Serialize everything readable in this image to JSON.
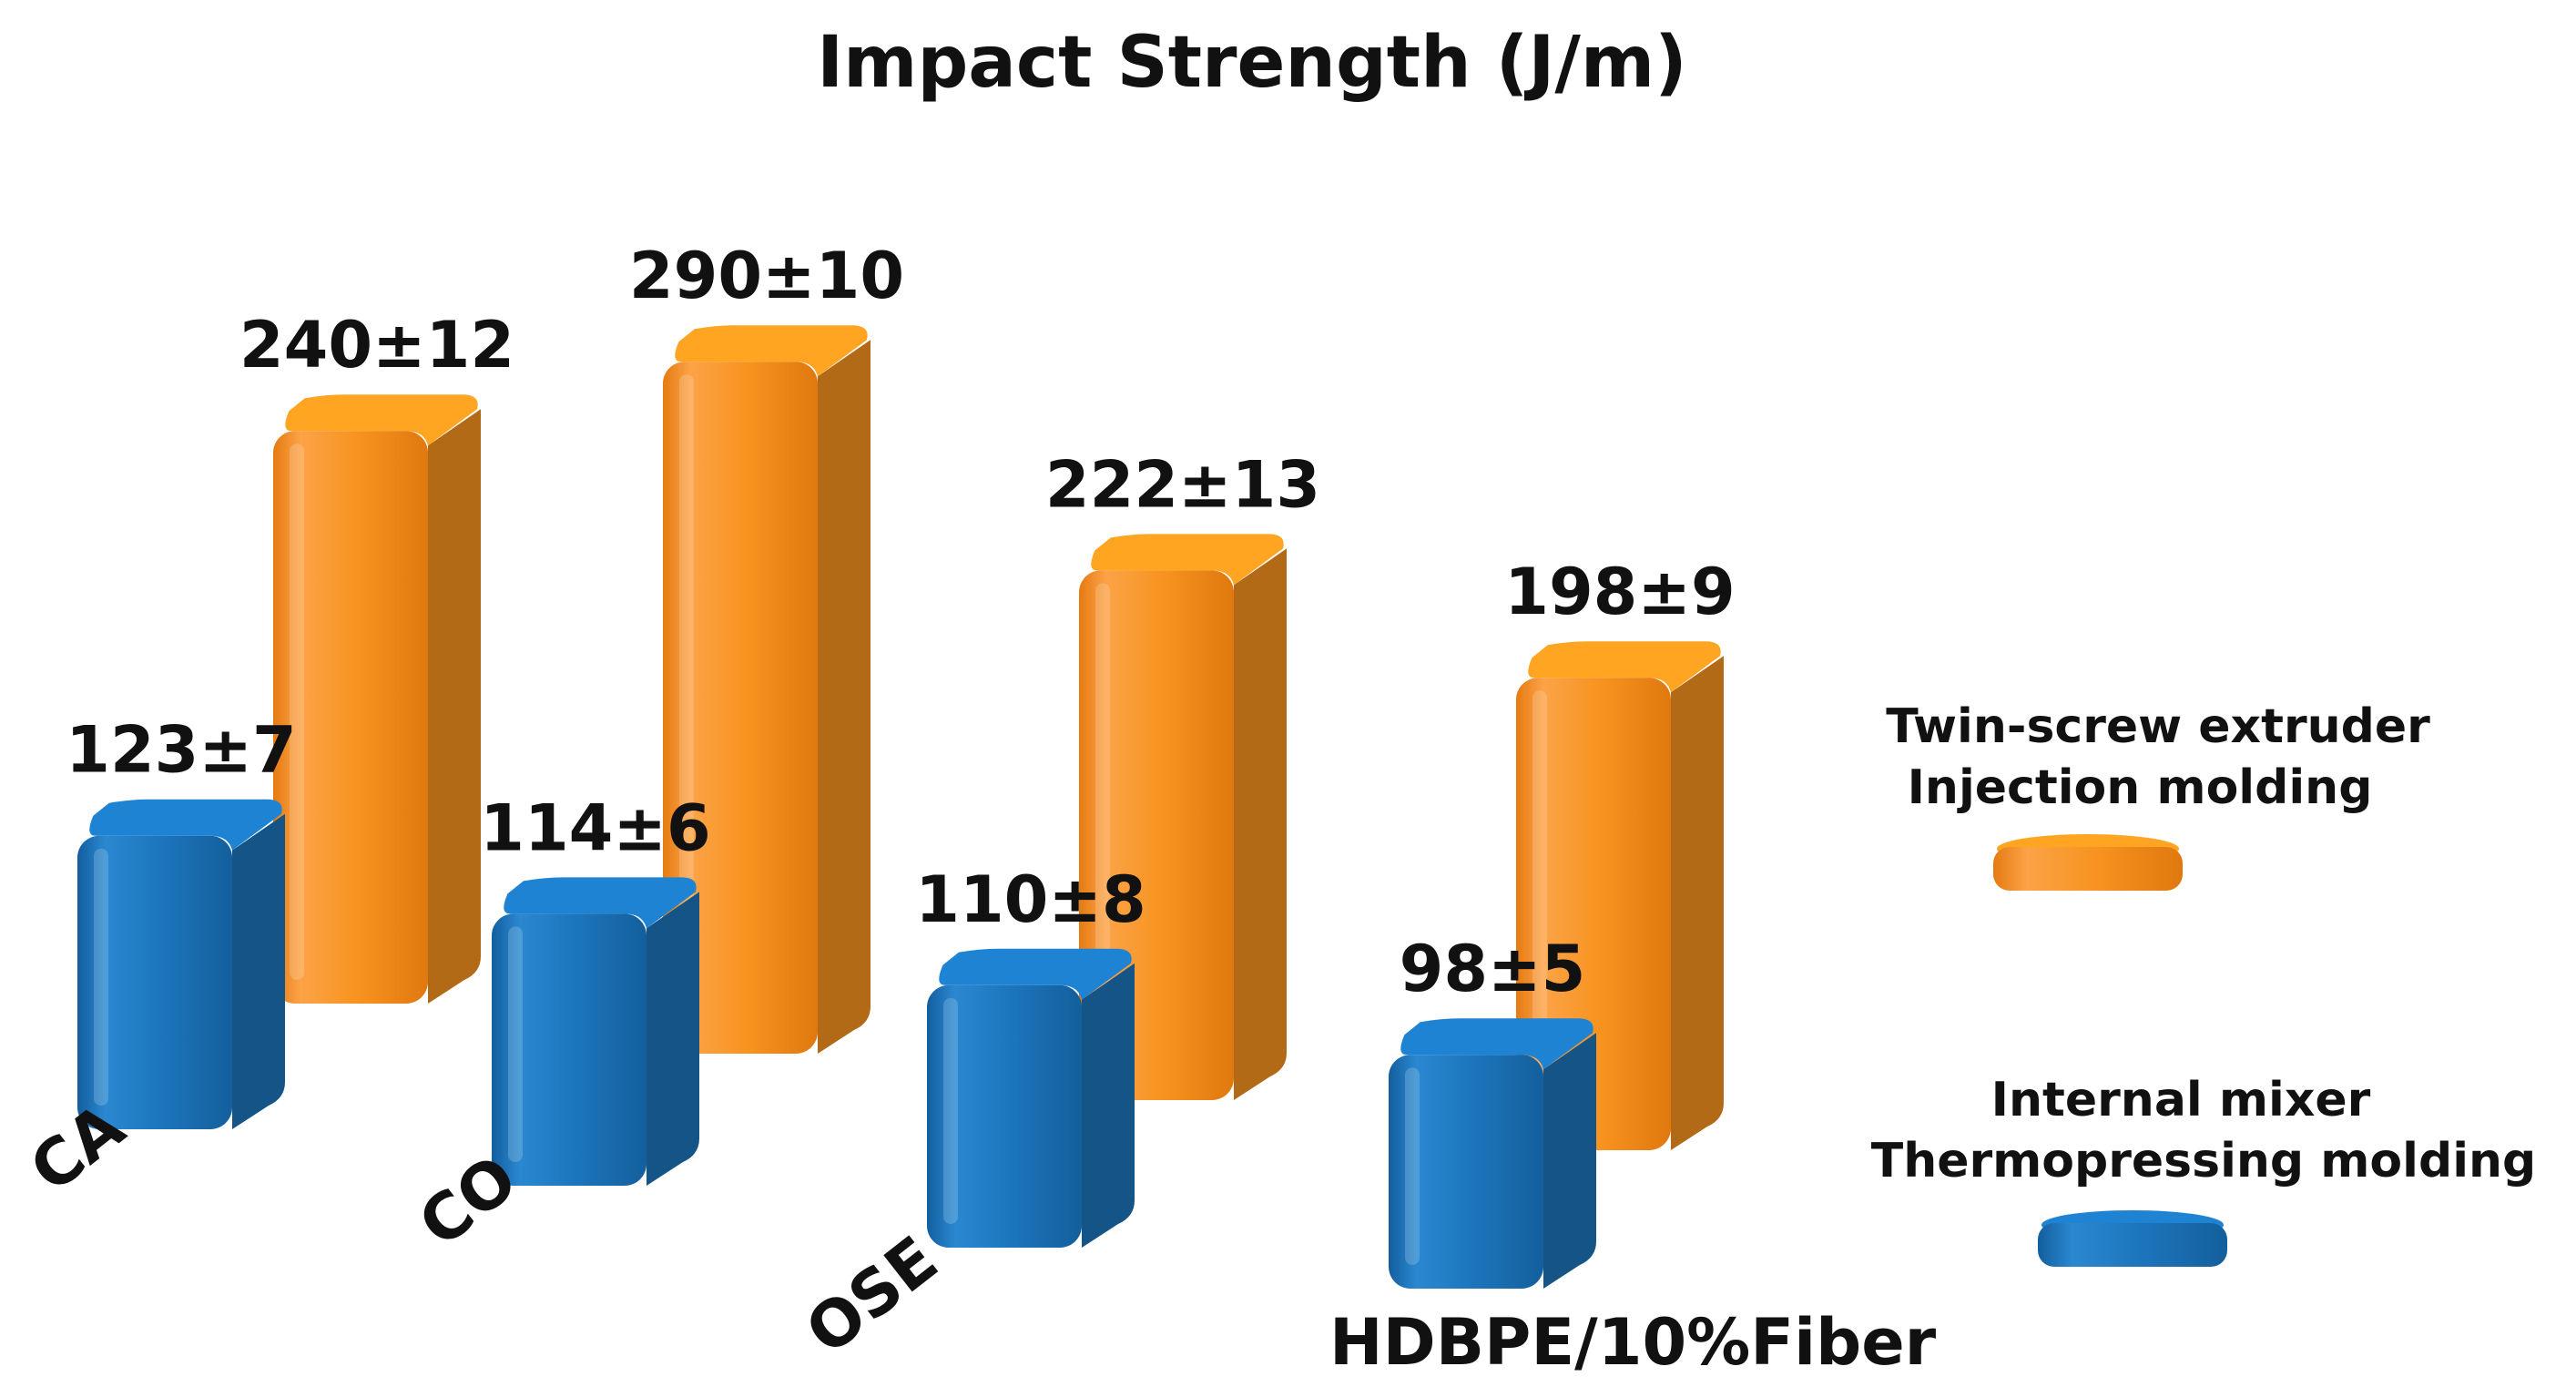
{
  "chart_data": {
    "type": "bar",
    "title": "Impact Strength (J/m)",
    "categories": [
      "CA",
      "CO",
      "OSE",
      "HDBPE/10%Fiber"
    ],
    "series": [
      {
        "name": "Twin-screw extruder Injection molding",
        "legend_lines": [
          "Twin-screw extruder",
          "Injection molding"
        ],
        "color": "#F7931E",
        "values": [
          240,
          290,
          222,
          198
        ],
        "errors": [
          12,
          10,
          13,
          9
        ],
        "labels": [
          "240±12",
          "290±10",
          "222±13",
          "198±9"
        ]
      },
      {
        "name": "Internal mixer Thermopressing molding",
        "legend_lines": [
          "Internal mixer",
          "Thermopressing molding"
        ],
        "color": "#1C75BC",
        "values": [
          123,
          114,
          110,
          98
        ],
        "errors": [
          7,
          6,
          8,
          5
        ],
        "labels": [
          "123±7",
          "114±6",
          "110±8",
          "98±5"
        ]
      }
    ],
    "ylim": [
      0,
      300
    ],
    "grid": false,
    "legend_position": "right",
    "style": "3d-bars"
  }
}
